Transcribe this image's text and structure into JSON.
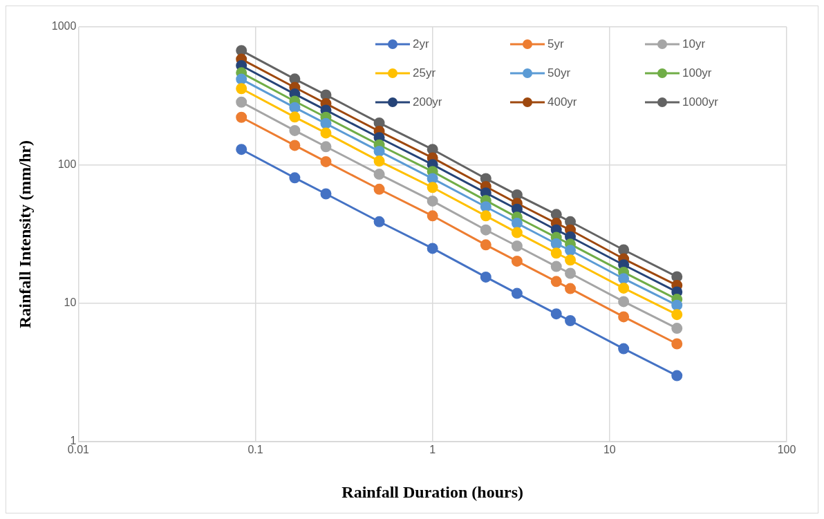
{
  "chart_data": {
    "type": "line",
    "xlabel": "Rainfall Duration (hours)",
    "ylabel": "Rainfall Intensity (mm/hr)",
    "log": "xy",
    "grid": true,
    "legend": "top right",
    "marker": "circle",
    "line_style": "solid",
    "x": [
      0.0833,
      0.1667,
      0.25,
      0.5,
      1,
      2,
      3,
      5,
      6,
      12,
      24
    ],
    "xlim": [
      0.01,
      100
    ],
    "xticks": [
      0.01,
      0.1,
      1,
      10,
      100
    ],
    "ylim": [
      1,
      1000
    ],
    "yticks": [
      1,
      10,
      100,
      1000
    ],
    "series": [
      {
        "name": "2yr",
        "color": "#4472c4",
        "values": [
          130,
          81,
          62,
          39,
          25,
          15.5,
          11.8,
          8.4,
          7.5,
          4.7,
          3.0
        ]
      },
      {
        "name": "5yr",
        "color": "#ed7d31",
        "values": [
          222,
          139,
          106,
          67,
          43,
          26.5,
          20.2,
          14.4,
          12.8,
          8.0,
          5.1
        ]
      },
      {
        "name": "10yr",
        "color": "#a5a5a5",
        "values": [
          286,
          178,
          136,
          86,
          55,
          34,
          26,
          18.5,
          16.5,
          10.3,
          6.6
        ]
      },
      {
        "name": "25yr",
        "color": "#ffc000",
        "values": [
          358,
          223,
          171,
          107,
          69,
          43,
          32.5,
          23.1,
          20.6,
          12.9,
          8.3
        ]
      },
      {
        "name": "50yr",
        "color": "#5b9bd5",
        "values": [
          419,
          261,
          200,
          126,
          80,
          50,
          38,
          27,
          24.2,
          15.1,
          9.7
        ]
      },
      {
        "name": "100yr",
        "color": "#70ad47",
        "values": [
          466,
          290,
          222,
          140,
          90,
          55.5,
          42,
          30,
          26.8,
          16.8,
          10.7
        ]
      },
      {
        "name": "200yr",
        "color": "#264478",
        "values": [
          525,
          327,
          250,
          158,
          101,
          63,
          48,
          34,
          30.3,
          19,
          12.1
        ]
      },
      {
        "name": "400yr",
        "color": "#9e480e",
        "values": [
          585,
          365,
          279,
          176,
          113,
          70,
          53,
          38,
          34,
          21,
          13.5
        ]
      },
      {
        "name": "1000yr",
        "color": "#636363",
        "values": [
          675,
          420,
          322,
          202,
          130,
          80,
          61,
          44,
          39,
          24.4,
          15.6
        ]
      }
    ]
  }
}
